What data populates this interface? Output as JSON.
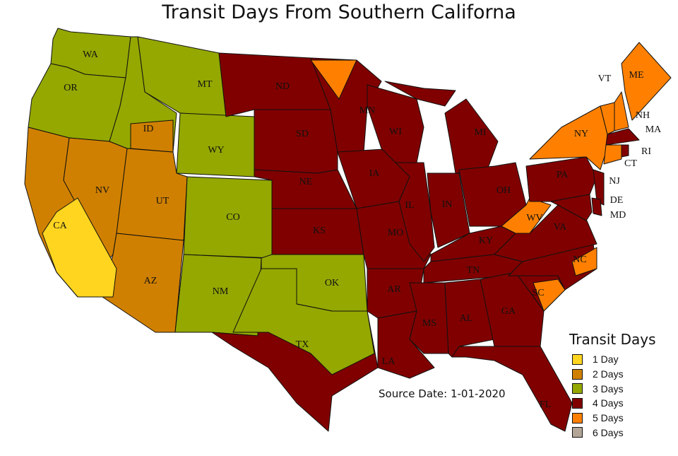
{
  "title": "Transit Days From Southern Californa",
  "source_date": "Source Date: 1-01-2020",
  "legend": {
    "title": "Transit Days",
    "items": [
      {
        "label": "1 Day",
        "days": 1,
        "color": "#FFD520"
      },
      {
        "label": "2 Days",
        "days": 2,
        "color": "#D08000"
      },
      {
        "label": "3 Days",
        "days": 3,
        "color": "#94A800"
      },
      {
        "label": "4 Days",
        "days": 4,
        "color": "#800000"
      },
      {
        "label": "5 Days",
        "days": 5,
        "color": "#FF8000"
      },
      {
        "label": "6 Days",
        "days": 6,
        "color": "#B3A698"
      }
    ]
  },
  "states": [
    {
      "abbr": "WA",
      "days": 3
    },
    {
      "abbr": "OR",
      "days": 3
    },
    {
      "abbr": "CA",
      "days": 2
    },
    {
      "abbr": "NV",
      "days": 2
    },
    {
      "abbr": "ID",
      "days": 3
    },
    {
      "abbr": "MT",
      "days": 3
    },
    {
      "abbr": "WY",
      "days": 3
    },
    {
      "abbr": "UT",
      "days": 2
    },
    {
      "abbr": "AZ",
      "days": 2
    },
    {
      "abbr": "CO",
      "days": 3
    },
    {
      "abbr": "NM",
      "days": 3
    },
    {
      "abbr": "ND",
      "days": 4
    },
    {
      "abbr": "SD",
      "days": 4
    },
    {
      "abbr": "NE",
      "days": 4
    },
    {
      "abbr": "KS",
      "days": 4
    },
    {
      "abbr": "OK",
      "days": 3
    },
    {
      "abbr": "TX",
      "days": 4
    },
    {
      "abbr": "MN",
      "days": 4
    },
    {
      "abbr": "IA",
      "days": 4
    },
    {
      "abbr": "MO",
      "days": 4
    },
    {
      "abbr": "AR",
      "days": 4
    },
    {
      "abbr": "LA",
      "days": 4
    },
    {
      "abbr": "WI",
      "days": 4
    },
    {
      "abbr": "IL",
      "days": 4
    },
    {
      "abbr": "MI",
      "days": 4
    },
    {
      "abbr": "IN",
      "days": 4
    },
    {
      "abbr": "OH",
      "days": 4
    },
    {
      "abbr": "KY",
      "days": 4
    },
    {
      "abbr": "TN",
      "days": 4
    },
    {
      "abbr": "MS",
      "days": 4
    },
    {
      "abbr": "AL",
      "days": 4
    },
    {
      "abbr": "GA",
      "days": 4
    },
    {
      "abbr": "FL",
      "days": 4
    },
    {
      "abbr": "SC",
      "days": 4
    },
    {
      "abbr": "NC",
      "days": 4
    },
    {
      "abbr": "VA",
      "days": 4
    },
    {
      "abbr": "WV",
      "days": 5
    },
    {
      "abbr": "PA",
      "days": 4
    },
    {
      "abbr": "NY",
      "days": 5
    },
    {
      "abbr": "NJ",
      "days": 4
    },
    {
      "abbr": "DE",
      "days": 4
    },
    {
      "abbr": "MD",
      "days": 4
    },
    {
      "abbr": "VT",
      "days": 5
    },
    {
      "abbr": "NH",
      "days": 5
    },
    {
      "abbr": "ME",
      "days": 5
    },
    {
      "abbr": "MA",
      "days": 4
    },
    {
      "abbr": "CT",
      "days": 5
    },
    {
      "abbr": "RI",
      "days": 4
    }
  ],
  "sub_regions": [
    {
      "state": "CA",
      "days": 1
    },
    {
      "state": "ID",
      "days": 2
    },
    {
      "state": "TX",
      "days": 3
    },
    {
      "state": "MN",
      "days": 5
    },
    {
      "state": "SC",
      "days": 5
    },
    {
      "state": "NC",
      "days": 5
    }
  ]
}
